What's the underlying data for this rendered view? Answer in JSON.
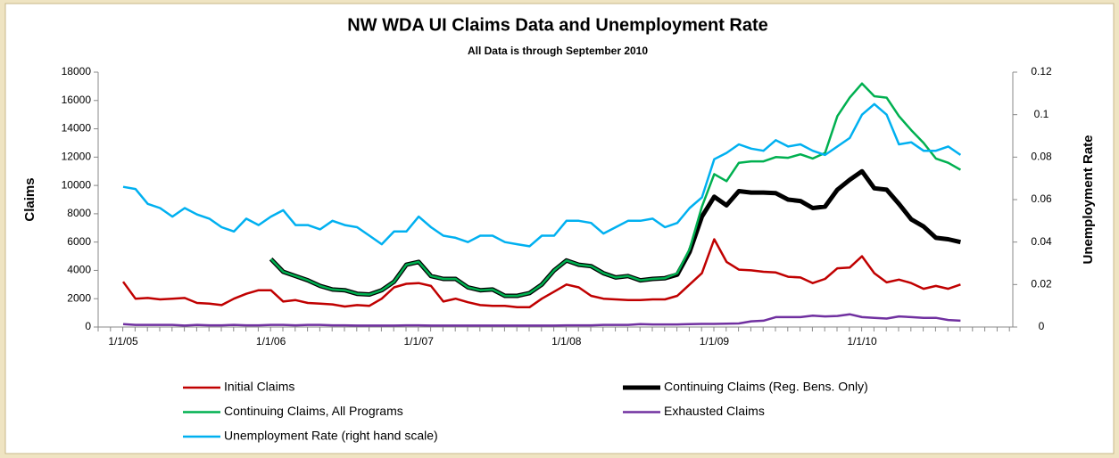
{
  "chart_data": {
    "type": "line",
    "title": "NW WDA UI Claims Data and Unemployment Rate",
    "subtitle": "All Data is through September 2010",
    "ylabel": "Claims",
    "y2label": "Unemployment Rate",
    "categories": [
      "1/1/05",
      null,
      null,
      null,
      null,
      null,
      null,
      null,
      null,
      null,
      null,
      null,
      "1/1/06",
      null,
      null,
      null,
      null,
      null,
      null,
      null,
      null,
      null,
      null,
      null,
      "1/1/07",
      null,
      null,
      null,
      null,
      null,
      null,
      null,
      null,
      null,
      null,
      null,
      "1/1/08",
      null,
      null,
      null,
      null,
      null,
      null,
      null,
      null,
      null,
      null,
      null,
      "1/1/09",
      null,
      null,
      null,
      null,
      null,
      null,
      null,
      null,
      null,
      null,
      null,
      "1/1/10",
      null,
      null,
      null,
      null,
      null,
      null,
      null,
      null
    ],
    "ylim": [
      0,
      18000
    ],
    "yticks": [
      0,
      2000,
      4000,
      6000,
      8000,
      10000,
      12000,
      14000,
      16000,
      18000
    ],
    "y2lim": [
      0,
      0.12
    ],
    "y2ticks": [
      0,
      0.02,
      0.04,
      0.06,
      0.08,
      0.1,
      0.12
    ],
    "series": [
      {
        "name": "Initial Claims",
        "color": "#c00000",
        "width": 2.5,
        "values": [
          3200,
          2000,
          2050,
          1950,
          2000,
          2050,
          1700,
          1650,
          1550,
          2000,
          2350,
          2600,
          2600,
          1800,
          1900,
          1700,
          1650,
          1600,
          1450,
          1550,
          1500,
          2000,
          2800,
          3050,
          3100,
          2900,
          1800,
          2000,
          1750,
          1550,
          1500,
          1500,
          1400,
          1400,
          2000,
          2500,
          3000,
          2800,
          2200,
          2000,
          1950,
          1900,
          1900,
          1950,
          1950,
          2200,
          3000,
          3800,
          6200,
          4600,
          4050,
          4000,
          3900,
          3850,
          3550,
          3500,
          3100,
          3400,
          4150,
          4200,
          5000,
          3800,
          3150,
          3350,
          3100,
          2700,
          2900,
          2700,
          3000
        ]
      },
      {
        "name": "Continuing Claims (Reg. Bens. Only)",
        "color": "#000000",
        "width": 5,
        "values": [
          null,
          null,
          null,
          null,
          null,
          null,
          null,
          null,
          null,
          null,
          null,
          null,
          4800,
          3900,
          3600,
          3300,
          2900,
          2650,
          2600,
          2350,
          2300,
          2600,
          3200,
          4400,
          4600,
          3600,
          3400,
          3400,
          2800,
          2600,
          2650,
          2200,
          2200,
          2400,
          3000,
          4000,
          4700,
          4400,
          4300,
          3800,
          3500,
          3600,
          3300,
          3400,
          3450,
          3700,
          5300,
          7800,
          9200,
          8600,
          9600,
          9500,
          9500,
          9450,
          9000,
          8900,
          8400,
          8500,
          9700,
          10400,
          11000,
          9800,
          9700,
          8700,
          7600,
          7100,
          6300,
          6200,
          6000
        ]
      },
      {
        "name": "Continuing Claims, All Programs",
        "color": "#00b050",
        "width": 2.5,
        "values": [
          null,
          null,
          null,
          null,
          null,
          null,
          null,
          null,
          null,
          null,
          null,
          null,
          4800,
          3900,
          3600,
          3300,
          2900,
          2650,
          2600,
          2350,
          2300,
          2600,
          3200,
          4400,
          4600,
          3600,
          3400,
          3400,
          2800,
          2600,
          2650,
          2200,
          2200,
          2400,
          3000,
          4000,
          4700,
          4400,
          4300,
          3800,
          3500,
          3600,
          3300,
          3400,
          3450,
          3800,
          5500,
          8500,
          10800,
          10300,
          11600,
          11700,
          11700,
          12000,
          11950,
          12200,
          11900,
          12300,
          14900,
          16200,
          17200,
          16300,
          16200,
          14900,
          13900,
          13000,
          11900,
          11600,
          11100
        ]
      },
      {
        "name": "Exhausted Claims",
        "color": "#7030a0",
        "width": 2.5,
        "values": [
          200,
          150,
          150,
          150,
          150,
          100,
          150,
          120,
          120,
          150,
          120,
          120,
          150,
          150,
          120,
          150,
          150,
          120,
          120,
          100,
          100,
          100,
          100,
          120,
          120,
          100,
          100,
          100,
          100,
          100,
          100,
          100,
          100,
          100,
          100,
          100,
          120,
          120,
          120,
          150,
          150,
          150,
          200,
          180,
          180,
          180,
          200,
          220,
          220,
          230,
          250,
          400,
          450,
          700,
          700,
          700,
          800,
          750,
          780,
          900,
          700,
          650,
          600,
          750,
          700,
          650,
          650,
          500,
          450
        ]
      },
      {
        "name": "Unemployment Rate (right hand scale)",
        "color": "#00b0f0",
        "width": 2.5,
        "axis": "y2",
        "values": [
          0.066,
          0.065,
          0.058,
          0.056,
          0.052,
          0.056,
          0.053,
          0.051,
          0.047,
          0.045,
          0.051,
          0.048,
          0.052,
          0.055,
          0.048,
          0.048,
          0.046,
          0.05,
          0.048,
          0.047,
          0.043,
          0.039,
          0.045,
          0.045,
          0.052,
          0.047,
          0.043,
          0.042,
          0.04,
          0.043,
          0.043,
          0.04,
          0.039,
          0.038,
          0.043,
          0.043,
          0.05,
          0.05,
          0.049,
          0.044,
          0.047,
          0.05,
          0.05,
          0.051,
          0.047,
          0.049,
          0.056,
          0.061,
          0.079,
          0.082,
          0.086,
          0.084,
          0.083,
          0.088,
          0.085,
          0.086,
          0.083,
          0.081,
          0.085,
          0.089,
          0.1,
          0.105,
          0.1,
          0.086,
          0.087,
          0.083,
          0.083,
          0.085,
          0.081
        ]
      }
    ],
    "draw_order": [
      0,
      1,
      2,
      3,
      4
    ]
  }
}
